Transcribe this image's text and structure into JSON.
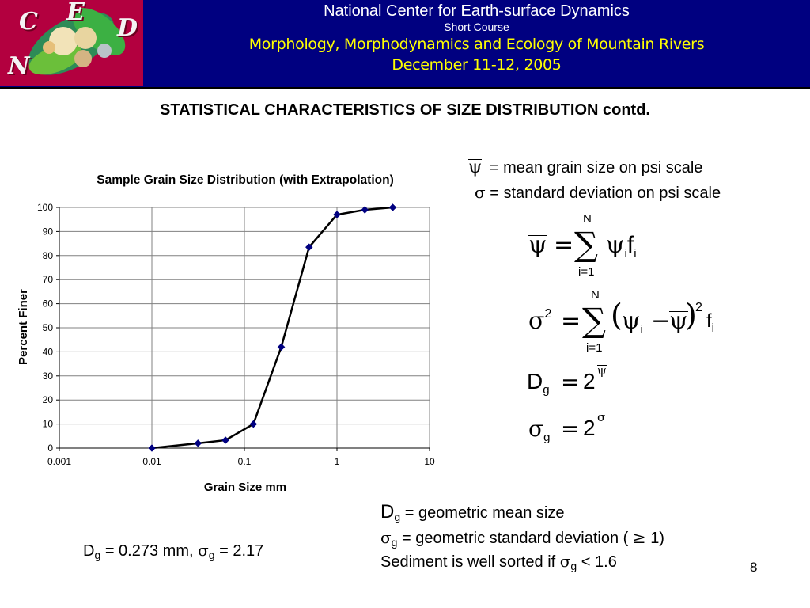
{
  "header": {
    "logo_letters": [
      "C",
      "E",
      "D",
      "N"
    ],
    "line1": "National Center for Earth-surface Dynamics",
    "line2": "Short Course",
    "line3": "Morphology, Morphodynamics and Ecology of Mountain Rivers",
    "line4": "December 11-12, 2005"
  },
  "slide_title": "STATISTICAL CHARACTERISTICS OF SIZE DISTRIBUTION contd.",
  "definitions": {
    "psi_bar": "= mean grain size on psi scale",
    "sigma": "= standard deviation on psi scale",
    "dg_def": "= geometric mean size",
    "sigmag_def": "= geometric standard deviation (",
    "sigmag_def_end": "1)",
    "sorted_text": "Sediment is well sorted if",
    "sorted_value": "< 1.6"
  },
  "equations": {
    "sum_upper": "N",
    "sum_lower": "i=1",
    "dg_base": "2",
    "sigmag_base": "2",
    "exponent2": "2"
  },
  "result": {
    "dg_value": "= 0.273 mm,",
    "sigmag_value": "= 2.17"
  },
  "page_number": "8",
  "colors": {
    "header_bg": "#000080",
    "header_title": "#ffffff",
    "header_course": "#ffff00",
    "marker": "#000080",
    "line": "#000000"
  },
  "chart_data": {
    "type": "line",
    "title": "Sample Grain Size Distribution (with Extrapolation)",
    "xlabel": "Grain Size mm",
    "ylabel": "Percent Finer",
    "x_scale": "log",
    "xlim": [
      0.001,
      10
    ],
    "ylim": [
      0,
      100
    ],
    "x_ticks": [
      "0.001",
      "0.01",
      "0.1",
      "1",
      "10"
    ],
    "y_ticks": [
      "0",
      "10",
      "20",
      "30",
      "40",
      "50",
      "60",
      "70",
      "80",
      "90",
      "100"
    ],
    "grid": true,
    "series": [
      {
        "x": [
          0.01,
          0.0315,
          0.0625,
          0.125,
          0.25,
          0.5,
          1,
          2,
          4
        ],
        "y": [
          0,
          2,
          3.3,
          10,
          42,
          83.5,
          97,
          99,
          100
        ]
      }
    ]
  }
}
